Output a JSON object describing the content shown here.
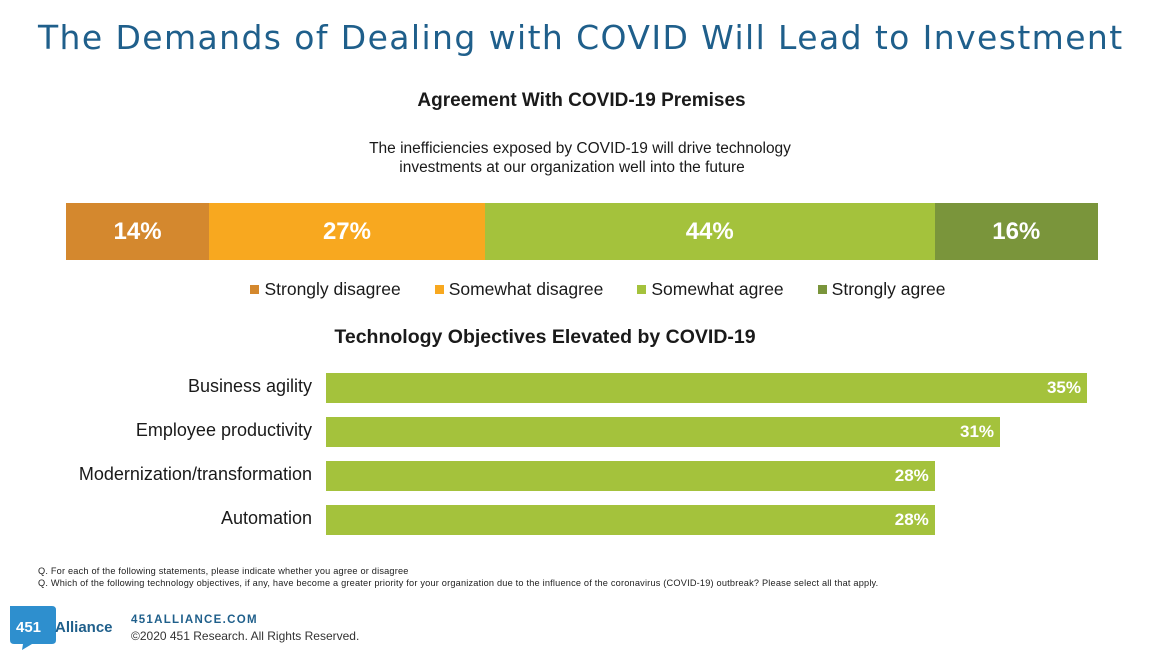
{
  "page": {
    "title": "The Demands of Dealing with COVID Will Lead to Investment"
  },
  "chart_data": [
    {
      "type": "bar",
      "orientation": "horizontal-stacked",
      "title": "Agreement With COVID-19 Premises",
      "subtitle_line1": "The inefficiencies exposed by COVID-19 will drive technology",
      "subtitle_line2": "investments at our organization well into the future",
      "series": [
        {
          "name": "Strongly disagree",
          "value": 14,
          "label": "14%",
          "color": "#d4882e"
        },
        {
          "name": "Somewhat disagree",
          "value": 27,
          "label": "27%",
          "color": "#f8a81f"
        },
        {
          "name": "Somewhat agree",
          "value": 44,
          "label": "44%",
          "color": "#a4c23c"
        },
        {
          "name": "Strongly agree",
          "value": 16,
          "label": "16%",
          "color": "#7a953b"
        }
      ],
      "legend": "bottom"
    },
    {
      "type": "bar",
      "orientation": "horizontal",
      "title": "Technology Objectives Elevated by COVID-19",
      "categories": [
        "Business agility",
        "Employee productivity",
        "Modernization/transformation",
        "Automation"
      ],
      "values": [
        35,
        31,
        28,
        28
      ],
      "value_labels": [
        "35%",
        "31%",
        "28%",
        "28%"
      ],
      "color": "#a4c23c",
      "xlim": [
        0,
        35
      ]
    }
  ],
  "footnotes": [
    "Q. For each of the following statements, please indicate whether you agree or disagree",
    "Q. Which of the following technology objectives, if any, have become a greater priority for your organization due to the influence of the coronavirus (COVID-19) outbreak? Please select all that apply."
  ],
  "footer": {
    "logo_text_number": "451",
    "logo_text_word": "Alliance",
    "url": "451ALLIANCE.COM",
    "copyright": "©2020 451 Research. All Rights Reserved."
  }
}
